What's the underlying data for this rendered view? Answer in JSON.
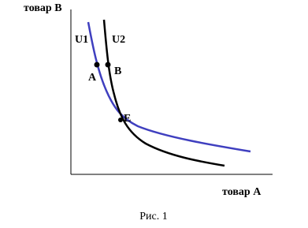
{
  "axes": {
    "y_label": "товар В",
    "x_label": "товар А"
  },
  "curves": [
    {
      "label": "U1"
    },
    {
      "label": "U2"
    }
  ],
  "points": [
    {
      "label": "A"
    },
    {
      "label": "B"
    },
    {
      "label": "E"
    }
  ],
  "caption": "Рис. 1"
}
